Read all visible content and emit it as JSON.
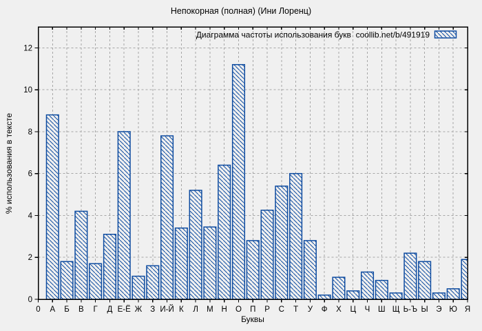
{
  "title": "Непокорная (полная) (Ини Лоренц)",
  "legend": {
    "label": "Диаграмма частоты использования букв  coollib.net/b/491919"
  },
  "axes": {
    "x_label": "Буквы",
    "y_label": "% использования в тексте",
    "origin_label": "0"
  },
  "colors": {
    "bar": "#0d4ba0",
    "grid": "#a6a6a6",
    "frame": "#000000",
    "background": "#f0f0f0",
    "text": "#000000"
  },
  "chart_data": {
    "type": "bar",
    "title": "Непокорная (полная) (Ини Лоренц)",
    "series_label": "Диаграмма частоты использования букв",
    "source_label": "coollib.net/b/491919",
    "xlabel": "Буквы",
    "ylabel": "% использования в тексте",
    "categories": [
      "А",
      "Б",
      "В",
      "Г",
      "Д",
      "Е-Ё",
      "Ж",
      "З",
      "И-Й",
      "К",
      "Л",
      "М",
      "Н",
      "О",
      "П",
      "Р",
      "С",
      "Т",
      "У",
      "Ф",
      "Х",
      "Ц",
      "Ч",
      "Ш",
      "Щ",
      "Ь-Ъ",
      "Ы",
      "Э",
      "Ю",
      "Я"
    ],
    "values": [
      8.8,
      1.8,
      4.2,
      1.7,
      3.1,
      8.0,
      1.1,
      1.6,
      7.8,
      3.4,
      5.2,
      3.45,
      6.4,
      11.2,
      2.8,
      4.25,
      5.4,
      6.0,
      2.8,
      0.2,
      1.05,
      0.4,
      1.3,
      0.9,
      0.3,
      2.2,
      1.8,
      0.3,
      0.5,
      1.9
    ],
    "ylim": [
      0,
      13
    ],
    "yticks": [
      0,
      2,
      4,
      6,
      8,
      10,
      12
    ],
    "grid": true,
    "legend_position": "top-right",
    "bar_style": "hatched"
  }
}
